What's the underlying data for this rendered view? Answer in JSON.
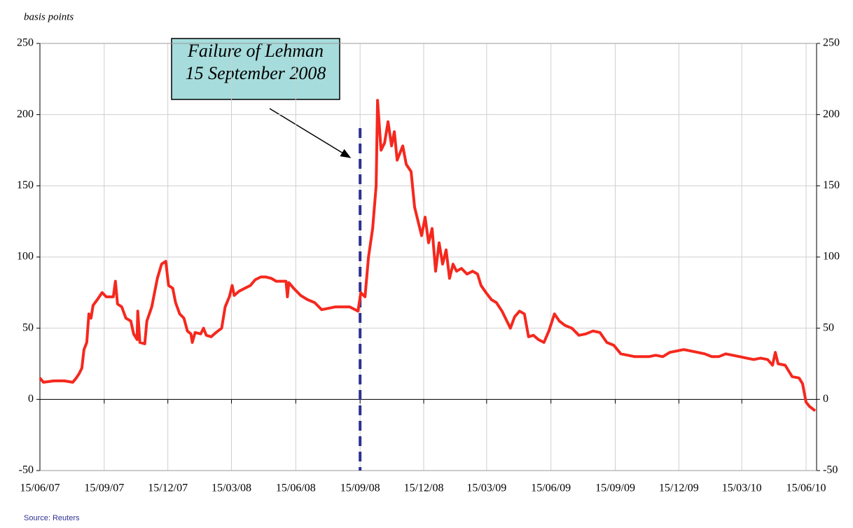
{
  "chart_data": {
    "type": "line",
    "subtitle": "basis points",
    "source": "Source: Reuters",
    "annotation": {
      "lines": [
        "Failure of Lehman",
        "15 September 2008"
      ],
      "date": "2008-09-15",
      "color": "#2e3192"
    },
    "xlim": [
      "2007-06-15",
      "2010-06-30"
    ],
    "xticks": [
      {
        "value": "2007-06-15",
        "label": "15/06/07"
      },
      {
        "value": "2007-09-15",
        "label": "15/09/07"
      },
      {
        "value": "2007-12-15",
        "label": "15/12/07"
      },
      {
        "value": "2008-03-15",
        "label": "15/03/08"
      },
      {
        "value": "2008-06-15",
        "label": "15/06/08"
      },
      {
        "value": "2008-09-15",
        "label": "15/09/08"
      },
      {
        "value": "2008-12-15",
        "label": "15/12/08"
      },
      {
        "value": "2009-03-15",
        "label": "15/03/09"
      },
      {
        "value": "2009-06-15",
        "label": "15/06/09"
      },
      {
        "value": "2009-09-15",
        "label": "15/09/09"
      },
      {
        "value": "2009-12-15",
        "label": "15/12/09"
      },
      {
        "value": "2010-03-15",
        "label": "15/03/10"
      },
      {
        "value": "2010-06-15",
        "label": "15/06/10"
      }
    ],
    "ylim": [
      -50,
      250
    ],
    "yticks": [
      -50,
      0,
      50,
      100,
      150,
      200,
      250
    ],
    "grid": true,
    "x": [
      "2007-06-15",
      "2007-06-20",
      "2007-07-05",
      "2007-07-20",
      "2007-08-01",
      "2007-08-06",
      "2007-08-10",
      "2007-08-14",
      "2007-08-17",
      "2007-08-21",
      "2007-08-24",
      "2007-08-27",
      "2007-08-30",
      "2007-09-05",
      "2007-09-12",
      "2007-09-18",
      "2007-09-28",
      "2007-10-01",
      "2007-10-04",
      "2007-10-10",
      "2007-10-16",
      "2007-10-23",
      "2007-10-27",
      "2007-11-01",
      "2007-11-02",
      "2007-11-05",
      "2007-11-12",
      "2007-11-15",
      "2007-11-22",
      "2007-11-26",
      "2007-11-30",
      "2007-12-06",
      "2007-12-12",
      "2007-12-16",
      "2007-12-22",
      "2007-12-26",
      "2008-01-01",
      "2008-01-07",
      "2008-01-12",
      "2008-01-17",
      "2008-01-19",
      "2008-01-23",
      "2008-01-31",
      "2008-02-04",
      "2008-02-08",
      "2008-02-15",
      "2008-02-22",
      "2008-03-01",
      "2008-03-06",
      "2008-03-12",
      "2008-03-16",
      "2008-03-19",
      "2008-03-26",
      "2008-04-03",
      "2008-04-11",
      "2008-04-18",
      "2008-04-26",
      "2008-05-03",
      "2008-05-11",
      "2008-05-18",
      "2008-06-01",
      "2008-06-03",
      "2008-06-05",
      "2008-06-12",
      "2008-06-22",
      "2008-07-02",
      "2008-07-12",
      "2008-07-22",
      "2008-08-01",
      "2008-08-11",
      "2008-08-31",
      "2008-09-12",
      "2008-09-16",
      "2008-09-22",
      "2008-09-27",
      "2008-10-03",
      "2008-10-08",
      "2008-10-10",
      "2008-10-15",
      "2008-10-20",
      "2008-10-25",
      "2008-10-30",
      "2008-11-03",
      "2008-11-07",
      "2008-11-15",
      "2008-11-20",
      "2008-11-27",
      "2008-12-02",
      "2008-12-07",
      "2008-12-12",
      "2008-12-17",
      "2008-12-22",
      "2008-12-27",
      "2009-01-01",
      "2009-01-06",
      "2009-01-11",
      "2009-01-16",
      "2009-01-21",
      "2009-01-26",
      "2009-01-31",
      "2009-02-07",
      "2009-02-15",
      "2009-02-23",
      "2009-03-02",
      "2009-03-07",
      "2009-03-14",
      "2009-03-22",
      "2009-03-29",
      "2009-04-06",
      "2009-04-13",
      "2009-04-18",
      "2009-04-24",
      "2009-05-01",
      "2009-05-08",
      "2009-05-14",
      "2009-05-21",
      "2009-05-28",
      "2009-06-05",
      "2009-06-12",
      "2009-06-20",
      "2009-06-27",
      "2009-07-05",
      "2009-07-15",
      "2009-07-25",
      "2009-08-04",
      "2009-08-14",
      "2009-08-24",
      "2009-09-03",
      "2009-09-13",
      "2009-09-23",
      "2009-10-03",
      "2009-10-13",
      "2009-10-23",
      "2009-11-02",
      "2009-11-12",
      "2009-11-22",
      "2009-12-02",
      "2009-12-12",
      "2009-12-22",
      "2010-01-01",
      "2010-01-11",
      "2010-01-21",
      "2010-01-31",
      "2010-02-10",
      "2010-02-20",
      "2010-03-02",
      "2010-03-12",
      "2010-03-22",
      "2010-04-01",
      "2010-04-11",
      "2010-04-21",
      "2010-04-28",
      "2010-05-02",
      "2010-05-06",
      "2010-05-16",
      "2010-05-26",
      "2010-06-05",
      "2010-06-10",
      "2010-06-15",
      "2010-06-20",
      "2010-06-28"
    ],
    "series": [
      {
        "color": "#f5281e",
        "values": [
          15,
          12,
          13,
          13,
          12,
          15,
          18,
          22,
          35,
          40,
          60,
          57,
          66,
          70,
          75,
          72,
          72,
          83,
          67,
          65,
          57,
          55,
          46,
          42,
          62,
          40,
          39,
          55,
          65,
          75,
          85,
          95,
          97,
          80,
          78,
          68,
          60,
          57,
          48,
          46,
          40,
          47,
          46,
          50,
          45,
          44,
          47,
          50,
          65,
          72,
          80,
          73,
          76,
          78,
          80,
          84,
          86,
          86,
          85,
          83,
          83,
          72,
          82,
          78,
          73,
          70,
          68,
          63,
          64,
          65,
          65,
          62,
          75,
          72,
          100,
          120,
          150,
          210,
          175,
          180,
          195,
          178,
          188,
          168,
          178,
          165,
          160,
          135,
          125,
          115,
          128,
          110,
          120,
          90,
          110,
          95,
          105,
          85,
          95,
          90,
          92,
          88,
          90,
          88,
          80,
          75,
          70,
          68,
          62,
          55,
          50,
          58,
          62,
          60,
          44,
          45,
          42,
          40,
          48,
          60,
          55,
          52,
          50,
          45,
          46,
          48,
          47,
          40,
          38,
          32,
          31,
          30,
          30,
          30,
          31,
          30,
          33,
          34,
          35,
          34,
          33,
          32,
          30,
          30,
          32,
          31,
          30,
          29,
          28,
          29,
          28,
          24,
          33,
          25,
          24,
          16,
          15,
          11,
          -2,
          -5,
          -8
        ]
      }
    ]
  }
}
